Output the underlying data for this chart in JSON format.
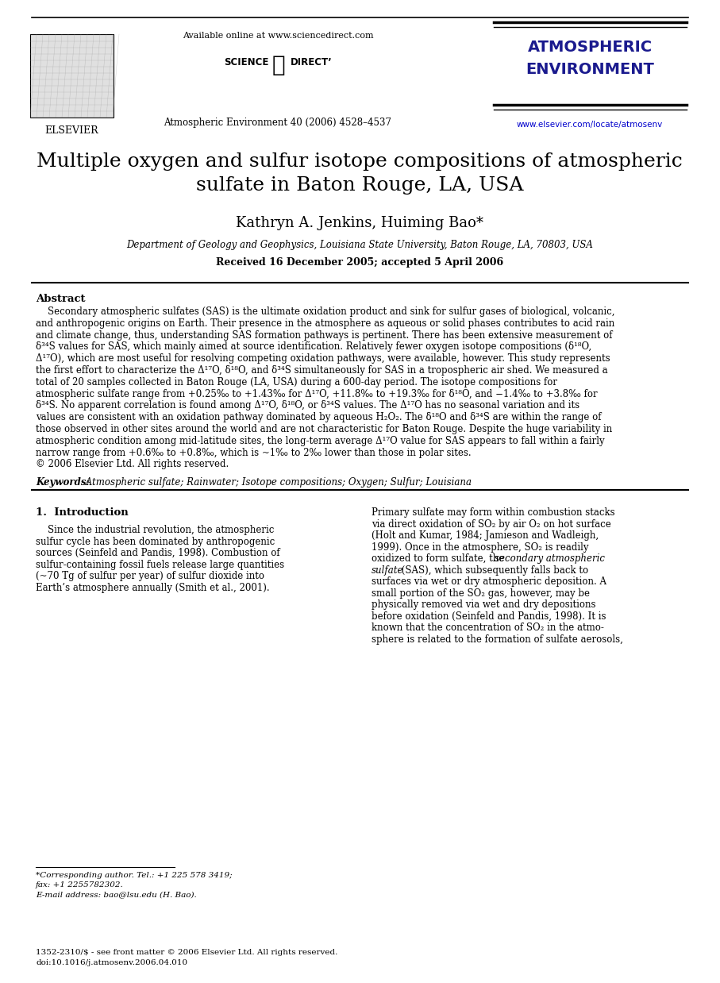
{
  "bg_color": "#ffffff",
  "header": {
    "available_text": "Available online at www.sciencedirect.com",
    "journal_name_line1": "ATMOSPHERIC",
    "journal_name_line2": "ENVIRONMENT",
    "journal_info": "Atmospheric Environment 40 (2006) 4528–4537",
    "url": "www.elsevier.com/locate/atmosenv",
    "elsevier_text": "ELSEVIER"
  },
  "title_line1": "Multiple oxygen and sulfur isotope compositions of atmospheric",
  "title_line2": "sulfate in Baton Rouge, LA, USA",
  "authors": "Kathryn A. Jenkins, Huiming Bao*",
  "affiliation": "Department of Geology and Geophysics, Louisiana State University, Baton Rouge, LA, 70803, USA",
  "received": "Received 16 December 2005; accepted 5 April 2006",
  "abstract_title": "Abstract",
  "abstract_lines": [
    "    Secondary atmospheric sulfates (SAS) is the ultimate oxidation product and sink for sulfur gases of biological, volcanic,",
    "and anthropogenic origins on Earth. Their presence in the atmosphere as aqueous or solid phases contributes to acid rain",
    "and climate change, thus, understanding SAS formation pathways is pertinent. There has been extensive measurement of",
    "δ³⁴S values for SAS, which mainly aimed at source identification. Relatively fewer oxygen isotope compositions (δ¹⁸O,",
    "Δ¹⁷O), which are most useful for resolving competing oxidation pathways, were available, however. This study represents",
    "the first effort to characterize the Δ¹⁷O, δ¹⁸O, and δ³⁴S simultaneously for SAS in a tropospheric air shed. We measured a",
    "total of 20 samples collected in Baton Rouge (LA, USA) during a 600-day period. The isotope compositions for",
    "atmospheric sulfate range from +0.25‰ to +1.43‰ for Δ¹⁷O, +11.8‰ to +19.3‰ for δ¹⁸O, and −1.4‰ to +3.8‰ for",
    "δ³⁴S. No apparent correlation is found among Δ¹⁷O, δ¹⁸O, or δ³⁴S values. The Δ¹⁷O has no seasonal variation and its",
    "values are consistent with an oxidation pathway dominated by aqueous H₂O₂. The δ¹⁸O and δ³⁴S are within the range of",
    "those observed in other sites around the world and are not characteristic for Baton Rouge. Despite the huge variability in",
    "atmospheric condition among mid-latitude sites, the long-term average Δ¹⁷O value for SAS appears to fall within a fairly",
    "narrow range from +0.6‰ to +0.8‰, which is ~1‰ to 2‰ lower than those in polar sites.",
    "© 2006 Elsevier Ltd. All rights reserved."
  ],
  "keywords_label": "Keywords:",
  "keywords_text": " Atmospheric sulfate; Rainwater; Isotope compositions; Oxygen; Sulfur; Louisiana",
  "section1_title": "1.  Introduction",
  "section1_col1_lines": [
    "    Since the industrial revolution, the atmospheric",
    "sulfur cycle has been dominated by anthropogenic",
    "sources (Seinfeld and Pandis, 1998). Combustion of",
    "sulfur-containing fossil fuels release large quantities",
    "(~70 Tg of sulfur per year) of sulfur dioxide into",
    "Earth’s atmosphere annually (Smith et al., 2001)."
  ],
  "section1_col2_lines": [
    "Primary sulfate may form within combustion stacks",
    "via direct oxidation of SO₂ by air O₂ on hot surface",
    "(Holt and Kumar, 1984; Jamieson and Wadleigh,",
    "1999). Once in the atmosphere, SO₂ is readily",
    "oxidized to form sulfate, the secondary atmospheric",
    "sulfate (SAS), which subsequently falls back to",
    "surfaces via wet or dry atmospheric deposition. A",
    "small portion of the SO₂ gas, however, may be",
    "physically removed via wet and dry depositions",
    "before oxidation (Seinfeld and Pandis, 1998). It is",
    "known that the concentration of SO₂ in the atmo-",
    "sphere is related to the formation of sulfate aerosols,"
  ],
  "footnote_lines": [
    "*Corresponding author. Tel.: +1 225 578 3419;",
    "fax: +1 2255782302.",
    "E-mail address: bao@lsu.edu (H. Bao)."
  ],
  "issn_lines": [
    "1352-2310/$ - see front matter © 2006 Elsevier Ltd. All rights reserved.",
    "doi:10.1016/j.atmosenv.2006.04.010"
  ]
}
